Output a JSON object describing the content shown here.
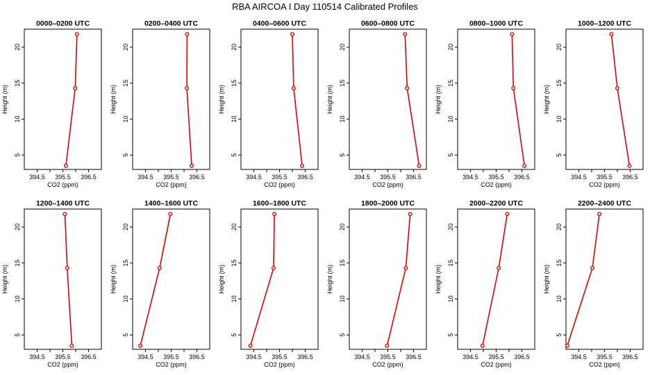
{
  "page_title": "RBA AIRCOA I  Day 110514  Calibrated Profiles",
  "colors": {
    "line": "#dd0000",
    "point": "#dd0000",
    "axis": "#000000",
    "background": "#ffffff"
  },
  "chart_data": [
    {
      "type": "line",
      "title": "0000–0200 UTC",
      "xlabel": "CO2 (ppm)",
      "ylabel": "Height (m)",
      "xlim": [
        394.0,
        397.0
      ],
      "ylim": [
        3.0,
        22.5
      ],
      "xticks": [
        "394.5",
        "395.5",
        "396.5"
      ],
      "yticks": [
        "5",
        "10",
        "15",
        "20"
      ],
      "grid": false,
      "series": [
        {
          "x": [
            395.62,
            395.98,
            396.05
          ],
          "y": [
            3.5,
            14.3,
            21.8
          ]
        }
      ]
    },
    {
      "type": "line",
      "title": "0200–0400 UTC",
      "xlabel": "CO2 (ppm)",
      "ylabel": "Height (m)",
      "xlim": [
        394.0,
        397.0
      ],
      "ylim": [
        3.0,
        22.5
      ],
      "xticks": [
        "394.5",
        "395.5",
        "396.5"
      ],
      "yticks": [
        "5",
        "10",
        "15",
        "20"
      ],
      "grid": false,
      "series": [
        {
          "x": [
            396.3,
            396.11,
            396.12
          ],
          "y": [
            3.5,
            14.3,
            21.8
          ]
        }
      ]
    },
    {
      "type": "line",
      "title": "0400–0600 UTC",
      "xlabel": "CO2 (ppm)",
      "ylabel": "Height (m)",
      "xlim": [
        394.0,
        397.0
      ],
      "ylim": [
        3.0,
        22.5
      ],
      "xticks": [
        "394.5",
        "395.5",
        "396.5"
      ],
      "yticks": [
        "5",
        "10",
        "15",
        "20"
      ],
      "grid": false,
      "series": [
        {
          "x": [
            396.38,
            396.05,
            396.0
          ],
          "y": [
            3.5,
            14.3,
            21.8
          ]
        }
      ]
    },
    {
      "type": "line",
      "title": "0600–0800 UTC",
      "xlabel": "CO2 (ppm)",
      "ylabel": "Height (m)",
      "xlim": [
        394.0,
        397.0
      ],
      "ylim": [
        3.0,
        22.5
      ],
      "xticks": [
        "394.5",
        "395.5",
        "396.5"
      ],
      "yticks": [
        "5",
        "10",
        "15",
        "20"
      ],
      "grid": false,
      "series": [
        {
          "x": [
            396.72,
            396.25,
            396.17
          ],
          "y": [
            3.5,
            14.3,
            21.8
          ]
        }
      ]
    },
    {
      "type": "line",
      "title": "0800–1000 UTC",
      "xlabel": "CO2 (ppm)",
      "ylabel": "Height (m)",
      "xlim": [
        394.0,
        397.0
      ],
      "ylim": [
        3.0,
        22.5
      ],
      "xticks": [
        "394.5",
        "395.5",
        "396.5"
      ],
      "yticks": [
        "5",
        "10",
        "15",
        "20"
      ],
      "grid": false,
      "series": [
        {
          "x": [
            396.6,
            396.17,
            396.12
          ],
          "y": [
            3.5,
            14.3,
            21.8
          ]
        }
      ]
    },
    {
      "type": "line",
      "title": "1000–1200 UTC",
      "xlabel": "CO2 (ppm)",
      "ylabel": "Height (m)",
      "xlim": [
        394.0,
        397.0
      ],
      "ylim": [
        3.0,
        22.5
      ],
      "xticks": [
        "394.5",
        "395.5",
        "396.5"
      ],
      "yticks": [
        "5",
        "10",
        "15",
        "20"
      ],
      "grid": false,
      "series": [
        {
          "x": [
            396.47,
            396.0,
            395.77
          ],
          "y": [
            3.5,
            14.3,
            21.8
          ]
        }
      ]
    },
    {
      "type": "line",
      "title": "1200–1400 UTC",
      "xlabel": "CO2 (ppm)",
      "ylabel": "Height (m)",
      "xlim": [
        394.0,
        397.0
      ],
      "ylim": [
        3.0,
        22.5
      ],
      "xticks": [
        "394.5",
        "395.5",
        "396.5"
      ],
      "yticks": [
        "5",
        "10",
        "15",
        "20"
      ],
      "grid": false,
      "series": [
        {
          "x": [
            395.85,
            395.67,
            395.58
          ],
          "y": [
            3.5,
            14.3,
            21.8
          ]
        }
      ]
    },
    {
      "type": "line",
      "title": "1400–1600 UTC",
      "xlabel": "CO2 (ppm)",
      "ylabel": "Height (m)",
      "xlim": [
        394.0,
        397.0
      ],
      "ylim": [
        3.0,
        22.5
      ],
      "xticks": [
        "394.5",
        "395.5",
        "396.5"
      ],
      "yticks": [
        "5",
        "10",
        "15",
        "20"
      ],
      "grid": false,
      "series": [
        {
          "x": [
            394.3,
            395.05,
            395.47
          ],
          "y": [
            3.5,
            14.3,
            21.8
          ]
        }
      ]
    },
    {
      "type": "line",
      "title": "1600–1800 UTC",
      "xlabel": "CO2 (ppm)",
      "ylabel": "Height (m)",
      "xlim": [
        394.0,
        397.0
      ],
      "ylim": [
        3.0,
        22.5
      ],
      "xticks": [
        "394.5",
        "395.5",
        "396.5"
      ],
      "yticks": [
        "5",
        "10",
        "15",
        "20"
      ],
      "grid": false,
      "series": [
        {
          "x": [
            394.37,
            395.27,
            395.3
          ],
          "y": [
            3.5,
            14.3,
            21.8
          ]
        }
      ]
    },
    {
      "type": "line",
      "title": "1800–2000 UTC",
      "xlabel": "CO2 (ppm)",
      "ylabel": "Height (m)",
      "xlim": [
        394.0,
        397.0
      ],
      "ylim": [
        3.0,
        22.5
      ],
      "xticks": [
        "394.5",
        "395.5",
        "396.5"
      ],
      "yticks": [
        "5",
        "10",
        "15",
        "20"
      ],
      "grid": false,
      "series": [
        {
          "x": [
            395.47,
            396.2,
            396.37
          ],
          "y": [
            3.5,
            14.3,
            21.8
          ]
        }
      ]
    },
    {
      "type": "line",
      "title": "2000–2200 UTC",
      "xlabel": "CO2 (ppm)",
      "ylabel": "Height (m)",
      "xlim": [
        394.0,
        397.0
      ],
      "ylim": [
        3.0,
        22.5
      ],
      "xticks": [
        "394.5",
        "395.5",
        "396.5"
      ],
      "yticks": [
        "5",
        "10",
        "15",
        "20"
      ],
      "grid": false,
      "series": [
        {
          "x": [
            394.97,
            395.6,
            395.93
          ],
          "y": [
            3.5,
            14.3,
            21.8
          ]
        }
      ]
    },
    {
      "type": "line",
      "title": "2200–2400 UTC",
      "xlabel": "CO2 (ppm)",
      "ylabel": "Height (m)",
      "xlim": [
        394.0,
        397.0
      ],
      "ylim": [
        3.0,
        22.5
      ],
      "xticks": [
        "394.5",
        "395.5",
        "396.5"
      ],
      "yticks": [
        "5",
        "10",
        "15",
        "20"
      ],
      "grid": false,
      "series": [
        {
          "x": [
            394.05,
            395.03,
            395.3
          ],
          "y": [
            3.5,
            14.3,
            21.8
          ]
        }
      ]
    }
  ]
}
